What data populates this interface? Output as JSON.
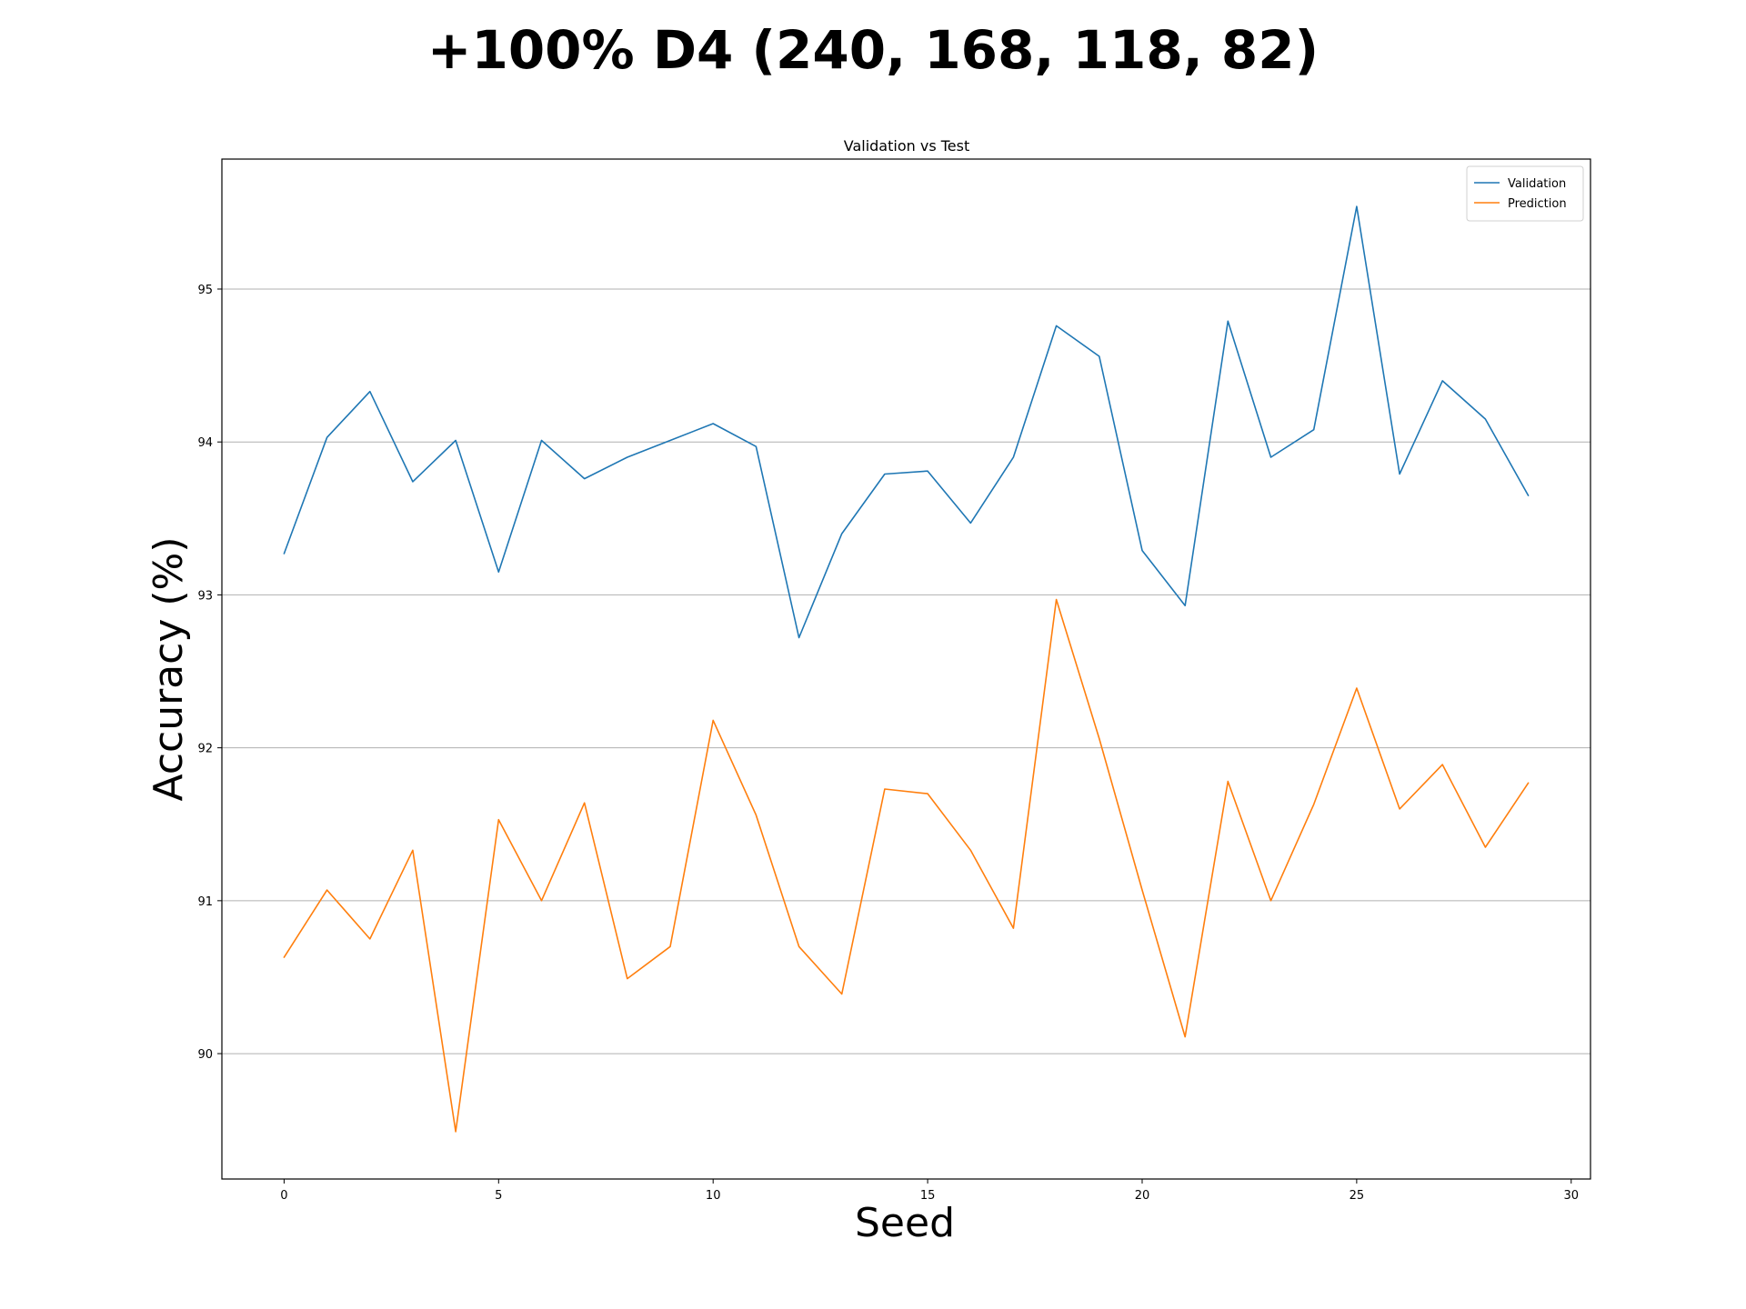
{
  "figure": {
    "suptitle": "+100% D4 (240, 168, 118, 82)"
  },
  "chart_data": {
    "type": "line",
    "title": "Validation vs Test",
    "xlabel": "Seed",
    "ylabel": "Accuracy (%)",
    "xlim": [
      -1.45,
      30.45
    ],
    "ylim": [
      89.18,
      95.85
    ],
    "x_ticks": [
      0,
      5,
      10,
      15,
      20,
      25,
      30
    ],
    "y_ticks": [
      90,
      91,
      92,
      93,
      94,
      95
    ],
    "grid": "horizontal",
    "legend_position": "top-right",
    "x": [
      0,
      1,
      2,
      3,
      4,
      5,
      6,
      7,
      8,
      9,
      10,
      11,
      12,
      13,
      14,
      15,
      16,
      17,
      18,
      19,
      20,
      21,
      22,
      23,
      24,
      25,
      26,
      27,
      28,
      29
    ],
    "series": [
      {
        "name": "Validation",
        "color": "#1f77b4",
        "values": [
          93.27,
          94.03,
          94.33,
          93.74,
          94.01,
          93.15,
          94.01,
          93.76,
          93.9,
          94.01,
          94.12,
          93.97,
          92.72,
          93.4,
          93.79,
          93.81,
          93.47,
          93.9,
          94.76,
          94.56,
          93.29,
          92.93,
          94.79,
          93.9,
          94.08,
          95.54,
          93.79,
          94.4,
          94.15,
          93.65
        ]
      },
      {
        "name": "Prediction",
        "color": "#ff7f0e",
        "values": [
          90.63,
          91.07,
          90.75,
          91.33,
          89.49,
          91.53,
          91.0,
          91.64,
          90.49,
          90.7,
          92.18,
          91.56,
          90.7,
          90.39,
          91.73,
          91.7,
          91.33,
          90.82,
          92.97,
          92.06,
          91.07,
          90.11,
          91.78,
          91.0,
          91.63,
          92.39,
          91.6,
          91.89,
          91.35,
          91.77
        ]
      }
    ]
  }
}
